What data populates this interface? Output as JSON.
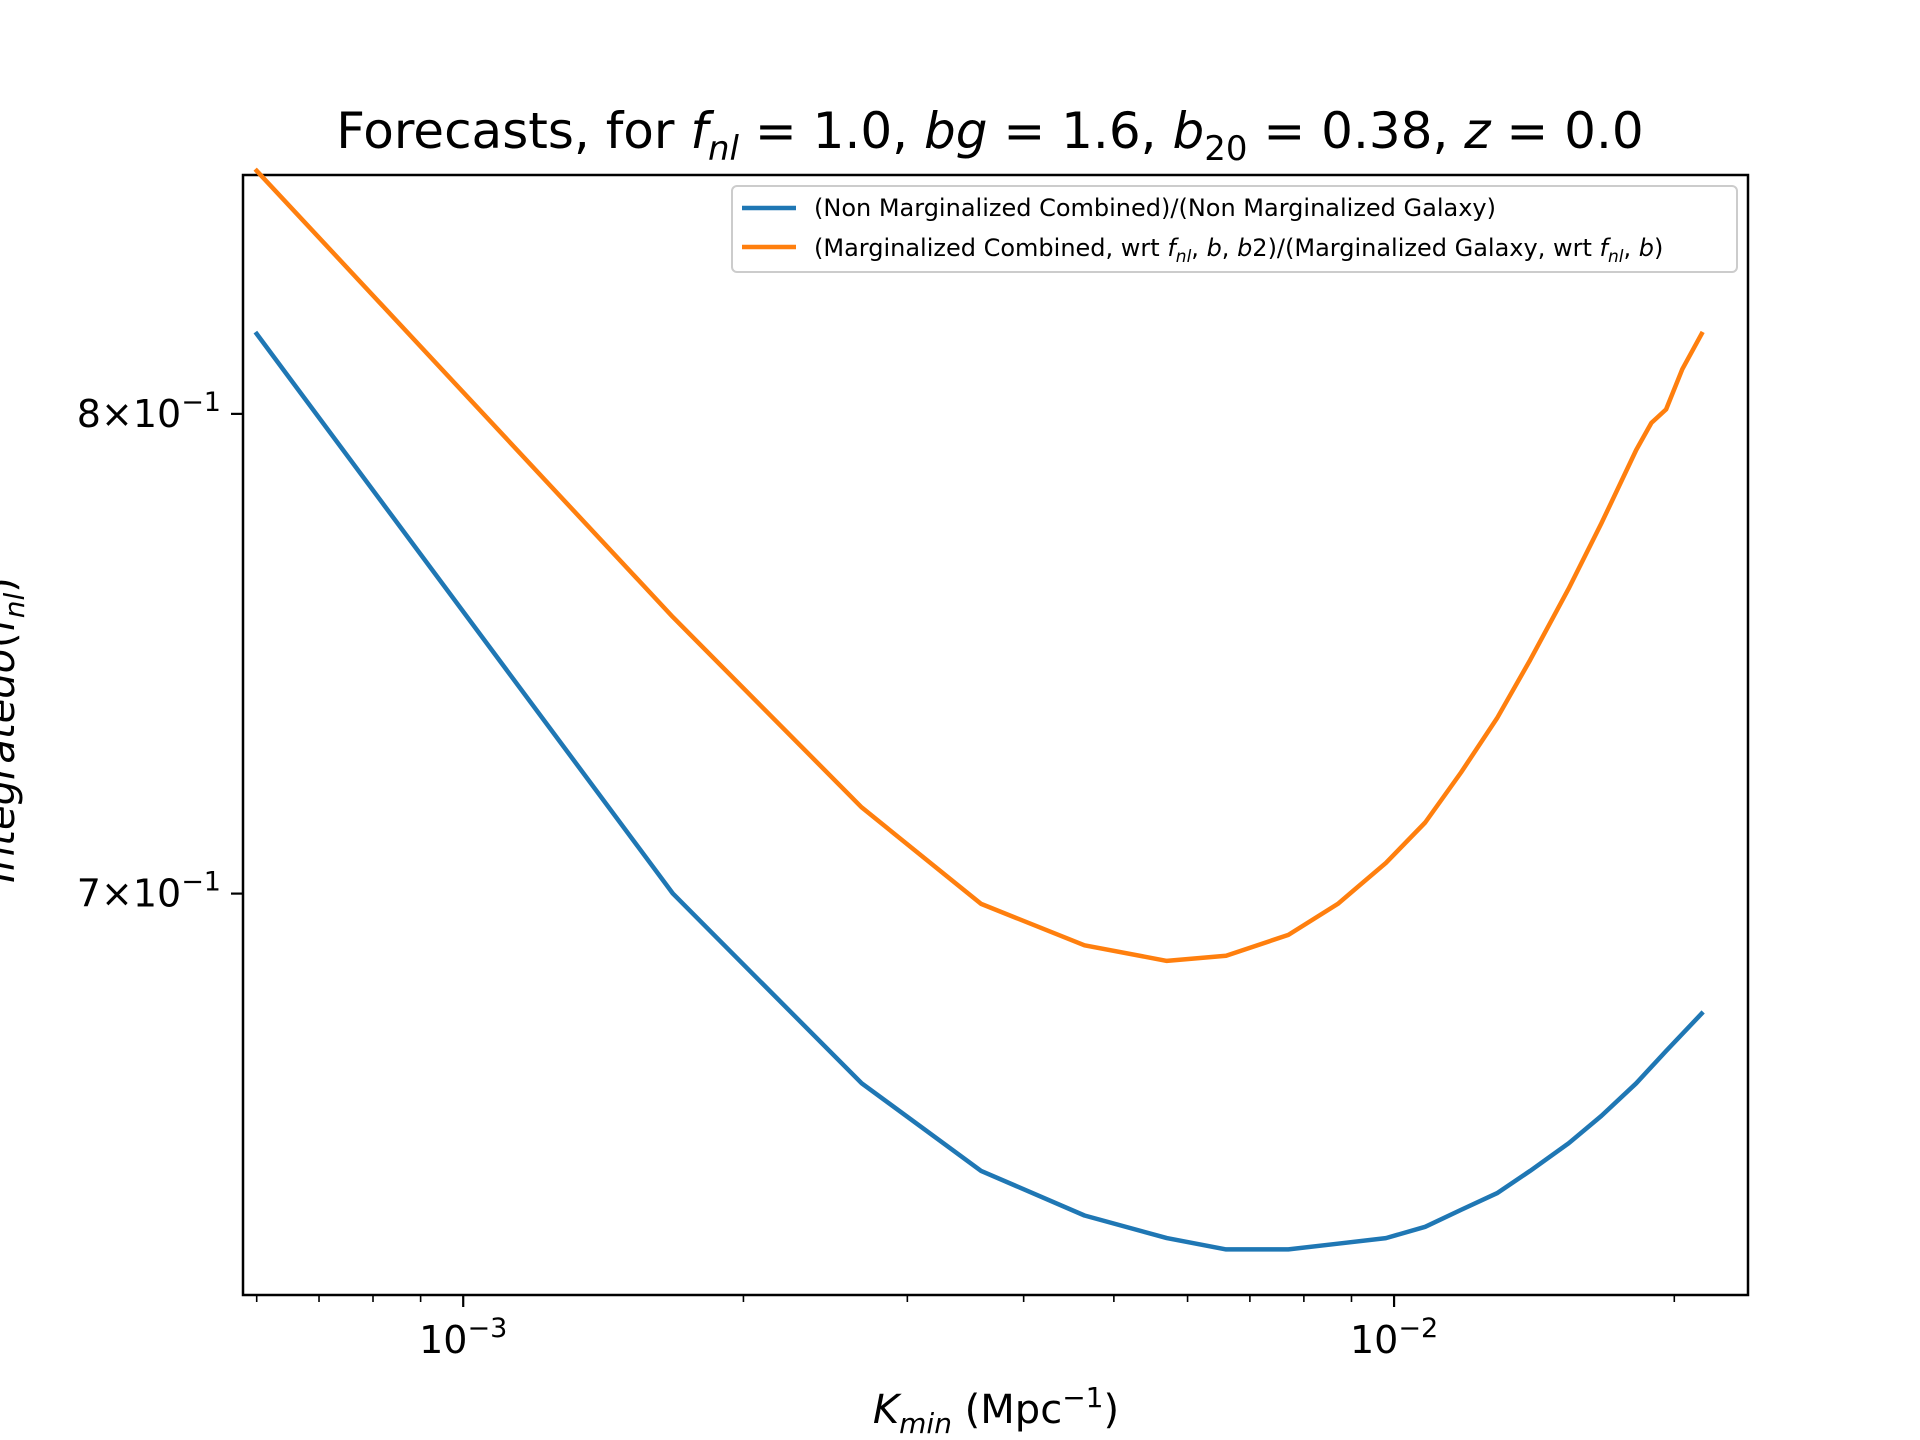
{
  "chart_data": {
    "type": "line",
    "title_parts": [
      "Forecasts, for ",
      "f",
      "nl",
      " = 1.0, ",
      "bg",
      " = 1.6, ",
      "b",
      "20",
      " = 0.38, ",
      "z",
      " = 0.0"
    ],
    "xlabel_parts": [
      "K",
      "min",
      " (Mpc",
      "−1",
      ")"
    ],
    "ylabel_parts": [
      "Integrated",
      "σ",
      "(",
      "f",
      "nl",
      ")"
    ],
    "x_scale": "log",
    "y_scale": "log",
    "xlim": [
      0.00058,
      0.024
    ],
    "ylim": [
      0.626,
      0.855
    ],
    "x_ticks": [
      {
        "value": 0.001,
        "base": "10",
        "exp": "−3"
      },
      {
        "value": 0.01,
        "base": "10",
        "exp": "−2"
      }
    ],
    "y_ticks": [
      {
        "value": 0.7,
        "mant": "7",
        "base": "×10",
        "exp": "−1"
      },
      {
        "value": 0.8,
        "mant": "8",
        "base": "×10",
        "exp": "−1"
      }
    ],
    "legend_position": "upper right",
    "series": [
      {
        "name": "(Non Marginalized Combined)/(Non Marginalized Galaxy)",
        "color": "#1f77b4",
        "x": [
          0.0006,
          0.00168,
          0.00268,
          0.0036,
          0.00465,
          0.0057,
          0.0066,
          0.0077,
          0.0087,
          0.0098,
          0.0108,
          0.0118,
          0.0129,
          0.014,
          0.0154,
          0.0167,
          0.0182,
          0.0196,
          0.0214
        ],
        "y": [
          0.818,
          0.7,
          0.664,
          0.648,
          0.64,
          0.636,
          0.634,
          0.634,
          0.635,
          0.636,
          0.638,
          0.641,
          0.644,
          0.648,
          0.653,
          0.658,
          0.664,
          0.67,
          0.677
        ]
      },
      {
        "name_parts": [
          "(Marginalized Combined, wrt ",
          "f",
          "nl",
          ",  ",
          "b",
          ",  ",
          "b",
          "2)/(Marginalized Galaxy, wrt ",
          "f",
          "nl",
          ",  ",
          "b",
          ")"
        ],
        "color": "#ff7f0e",
        "x": [
          0.0006,
          0.00168,
          0.00268,
          0.0036,
          0.00465,
          0.0057,
          0.0066,
          0.0077,
          0.0087,
          0.0098,
          0.0108,
          0.0118,
          0.0129,
          0.014,
          0.0154,
          0.0167,
          0.0182,
          0.0189,
          0.0196,
          0.0204,
          0.0214
        ],
        "y": [
          0.856,
          0.756,
          0.717,
          0.698,
          0.69,
          0.687,
          0.688,
          0.692,
          0.698,
          0.706,
          0.714,
          0.724,
          0.735,
          0.747,
          0.762,
          0.776,
          0.792,
          0.798,
          0.801,
          0.81,
          0.818
        ]
      }
    ]
  }
}
